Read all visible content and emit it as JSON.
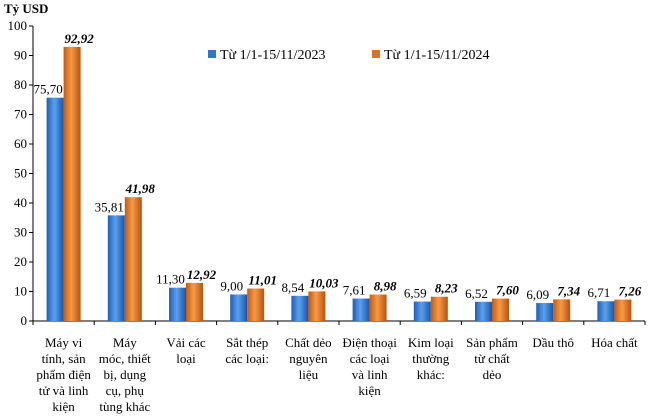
{
  "chart_data": {
    "type": "bar",
    "ylabel": "Tỷ USD",
    "ylim": [
      0,
      100
    ],
    "yticks": [
      0,
      10,
      20,
      30,
      40,
      50,
      60,
      70,
      80,
      90,
      100
    ],
    "grid": false,
    "legend_position": "top-right",
    "categories": [
      [
        "Máy vi",
        "tính, sản",
        "phẩm điện",
        "tử và linh",
        "kiện"
      ],
      [
        "Máy",
        "móc, thiết",
        "bị, dụng",
        "cụ, phụ",
        "tùng khác"
      ],
      [
        "Vải các",
        "loại"
      ],
      [
        "Sắt thép",
        "các loại:"
      ],
      [
        "Chất dẻo",
        "nguyên",
        "liệu"
      ],
      [
        "Điện thoại",
        "các loại",
        "và linh",
        "kiện"
      ],
      [
        "Kim loại",
        "thường",
        "khác:"
      ],
      [
        "Sản phẩm",
        "từ chất",
        "dẻo"
      ],
      [
        "Dầu thô"
      ],
      [
        "Hóa chất"
      ]
    ],
    "series": [
      {
        "name": "Từ 1/1-15/11/2023",
        "color": "#2E75D0",
        "values": [
          75.7,
          35.81,
          11.3,
          9.0,
          8.54,
          7.61,
          6.59,
          6.52,
          6.09,
          6.71
        ],
        "labels": [
          "75,70",
          "35,81",
          "11,30",
          "9,00",
          "8,54",
          "7,61",
          "6,59",
          "6,52",
          "6,09",
          "6,71"
        ]
      },
      {
        "name": "Từ 1/1-15/11/2024",
        "color": "#E2711D",
        "values": [
          92.92,
          41.98,
          12.92,
          11.01,
          10.03,
          8.98,
          8.23,
          7.6,
          7.34,
          7.26
        ],
        "labels": [
          "92,92",
          "41,98",
          "12,92",
          "11,01",
          "10,03",
          "8,98",
          "8,23",
          "7,60",
          "7,34",
          "7,26"
        ]
      }
    ]
  }
}
